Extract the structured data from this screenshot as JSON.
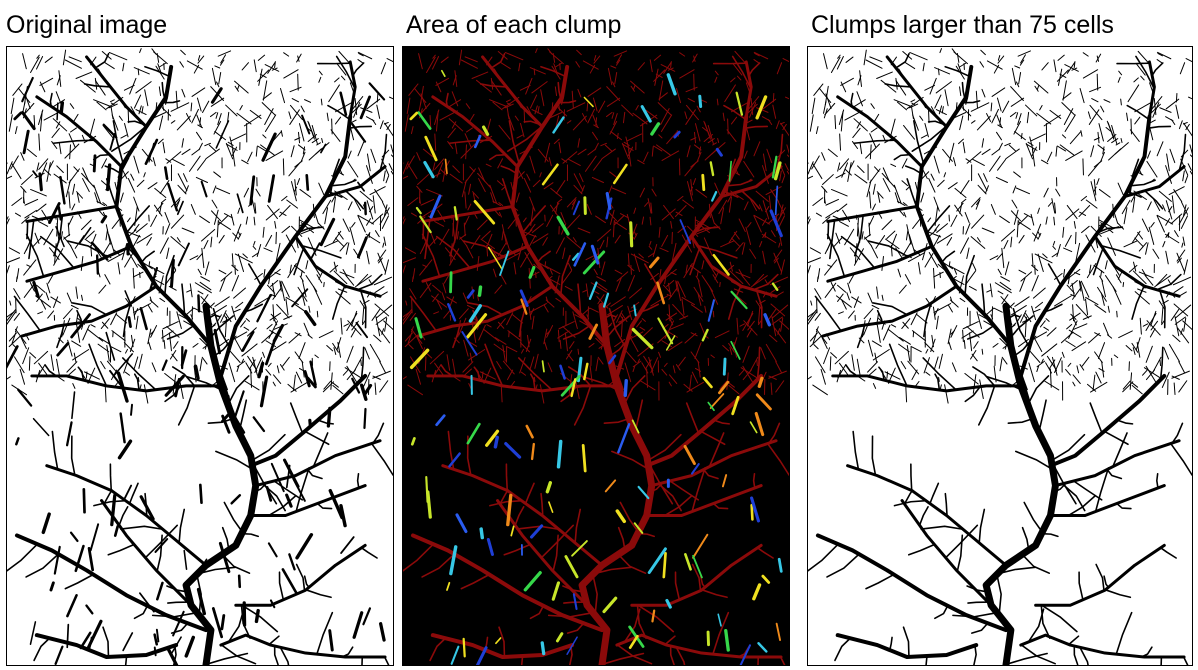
{
  "figure": {
    "panels": [
      {
        "title": "Original image",
        "description_style": "binary",
        "colors": {
          "background": "#ffffff",
          "features": "#000000"
        }
      },
      {
        "title": "Area of each clump",
        "description_style": "colored",
        "colors": {
          "background": "#000000",
          "largest_clump": "#8b0a0a",
          "small_clump_palette": [
            "#1f3fd6",
            "#2a5cf0",
            "#37c8e6",
            "#c8e62a",
            "#f0e020",
            "#36d84a",
            "#f08a1a"
          ]
        }
      },
      {
        "title": "Clumps larger than 75 cells",
        "description_style": "binary-filtered",
        "colors": {
          "background": "#ffffff",
          "features": "#000000"
        }
      }
    ]
  }
}
